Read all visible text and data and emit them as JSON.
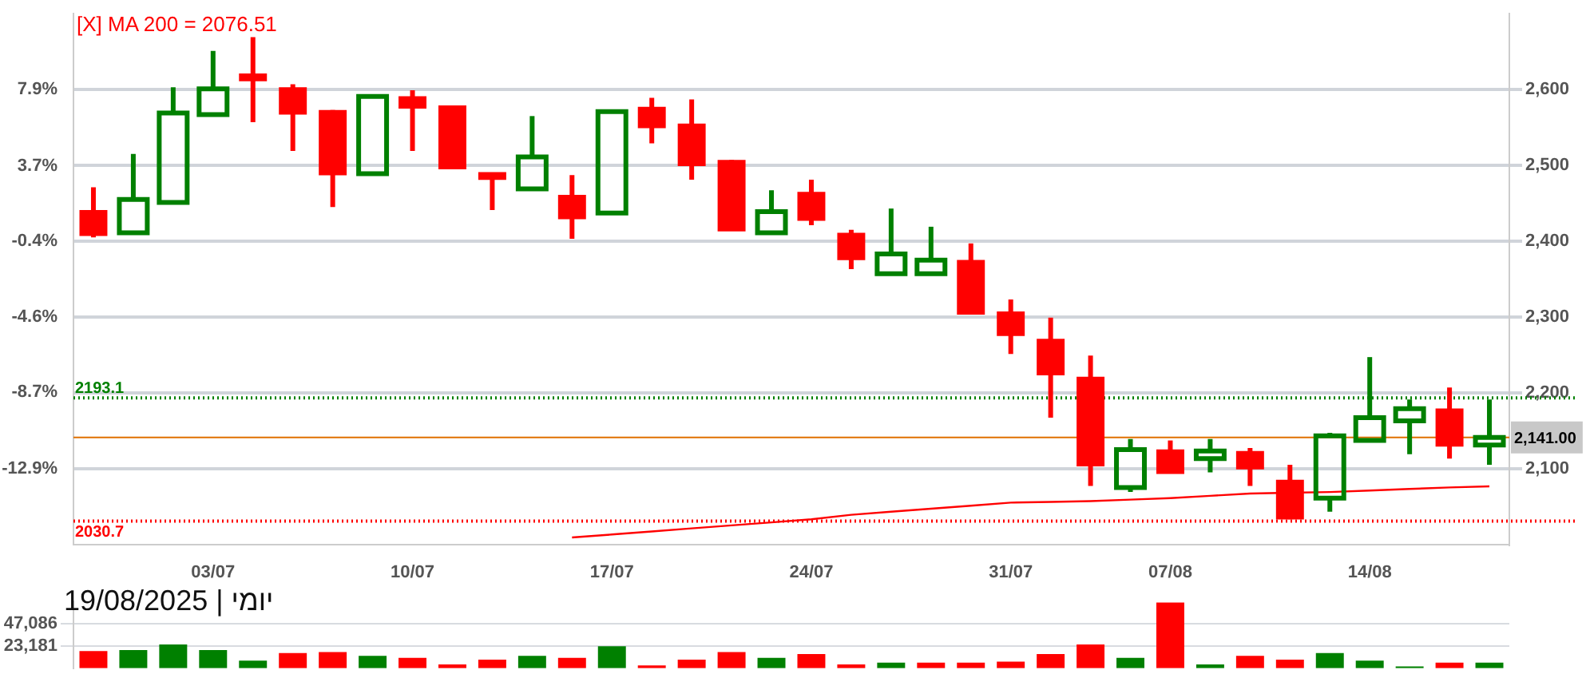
{
  "chart_data": [
    {
      "type": "candlestick",
      "annotations": [
        "[X] MA 200 = 2076.51"
      ],
      "categories": [
        null,
        null,
        null,
        "03/07",
        null,
        null,
        null,
        null,
        "10/07",
        null,
        null,
        null,
        null,
        "17/07",
        null,
        null,
        null,
        null,
        "24/07",
        null,
        null,
        null,
        null,
        "31/07",
        null,
        null,
        null,
        "07/08",
        null,
        null,
        null,
        null,
        "14/08",
        null,
        null,
        null
      ],
      "ohlc": [
        [
          2439,
          2471,
          2405,
          2409
        ],
        [
          2411,
          2515,
          2409,
          2455
        ],
        [
          2451,
          2603,
          2451,
          2569
        ],
        [
          2567,
          2651,
          2565,
          2601
        ],
        [
          2619,
          2669,
          2557,
          2613
        ],
        [
          2601,
          2607,
          2519,
          2569
        ],
        [
          2571,
          2573,
          2445,
          2489
        ],
        [
          2489,
          2591,
          2489,
          2591
        ],
        [
          2589,
          2599,
          2519,
          2577
        ],
        [
          2577,
          2577,
          2497,
          2497
        ],
        [
          2489,
          2489,
          2441,
          2483
        ],
        [
          2469,
          2565,
          2469,
          2511
        ],
        [
          2459,
          2487,
          2403,
          2431
        ],
        [
          2437,
          2571,
          2435,
          2571
        ],
        [
          2575,
          2589,
          2529,
          2551
        ],
        [
          2553,
          2587,
          2481,
          2501
        ],
        [
          2505,
          2507,
          2415,
          2415
        ],
        [
          2411,
          2467,
          2409,
          2439
        ],
        [
          2463,
          2481,
          2421,
          2429
        ],
        [
          2409,
          2415,
          2363,
          2377
        ],
        [
          2357,
          2443,
          2357,
          2383
        ],
        [
          2357,
          2419,
          2357,
          2375
        ],
        [
          2373,
          2397,
          2305,
          2305
        ],
        [
          2305,
          2323,
          2251,
          2277
        ],
        [
          2269,
          2299,
          2167,
          2225
        ],
        [
          2219,
          2249,
          2077,
          2105
        ],
        [
          2075,
          2139,
          2069,
          2125
        ],
        [
          2123,
          2137,
          2095,
          2095
        ],
        [
          2113,
          2139,
          2095,
          2123
        ],
        [
          2121,
          2127,
          2077,
          2101
        ],
        [
          2083,
          2105,
          2033,
          2035
        ],
        [
          2061,
          2147,
          2043,
          2143
        ],
        [
          2137,
          2247,
          2137,
          2167
        ],
        [
          2163,
          2191,
          2119,
          2179
        ],
        [
          2177,
          2207,
          2113,
          2131
        ],
        [
          2131,
          2191,
          2105,
          2141
        ]
      ],
      "colors": [
        "#ff0000",
        "#008000",
        "#008000",
        "#008000",
        "#ff0000",
        "#ff0000",
        "#ff0000",
        "#008000",
        "#ff0000",
        "#ff0000",
        "#ff0000",
        "#008000",
        "#ff0000",
        "#008000",
        "#ff0000",
        "#ff0000",
        "#ff0000",
        "#008000",
        "#ff0000",
        "#ff0000",
        "#008000",
        "#008000",
        "#ff0000",
        "#ff0000",
        "#ff0000",
        "#ff0000",
        "#008000",
        "#ff0000",
        "#008000",
        "#ff0000",
        "#ff0000",
        "#008000",
        "#008000",
        "#008000",
        "#ff0000",
        "#008000"
      ],
      "series": [
        {
          "type": "line",
          "color": "#ff0000",
          "values": [
            null,
            null,
            null,
            null,
            null,
            null,
            null,
            null,
            null,
            null,
            null,
            null,
            2009,
            2013,
            2017,
            2021,
            2025,
            2029,
            2033,
            2039,
            2043,
            2047,
            2051,
            2055,
            2056,
            2057,
            2059,
            2061,
            2064,
            2067,
            2068,
            2069,
            2071,
            2073,
            2075,
            2076.51
          ]
        }
      ],
      "ylim": [
        2000,
        2700
      ],
      "yticks": [
        {
          "value": 2100,
          "label": "2,100"
        },
        {
          "value": 2200,
          "label": "2,200"
        },
        {
          "value": 2300,
          "label": "2,300"
        },
        {
          "value": 2400,
          "label": "2,400"
        },
        {
          "value": 2500,
          "label": "2,500"
        },
        {
          "value": 2600,
          "label": "2,600"
        }
      ],
      "y2lim": [
        -17.06,
        12.06
      ],
      "y2ticks": [
        {
          "value": -12.9,
          "label": "-12.9%"
        },
        {
          "value": -8.7,
          "label": "-8.7%"
        },
        {
          "value": -4.6,
          "label": "-4.6%"
        },
        {
          "value": -0.4,
          "label": "-0.4%"
        },
        {
          "value": 3.7,
          "label": "3.7%"
        },
        {
          "value": 7.9,
          "label": "7.9%"
        }
      ],
      "ref_lines": [
        {
          "axis": "y",
          "value": 2193.1,
          "label": "2193.1",
          "color": "#008000",
          "line_style": "dotted"
        },
        {
          "axis": "y",
          "value": 2141,
          "label": "2,141.00",
          "color": "#e07000",
          "line_style": "solid"
        },
        {
          "axis": "y",
          "value": 2030.7,
          "label": "2030.7",
          "color": "#ff0000",
          "line_style": "dotted"
        }
      ],
      "grid": "y",
      "legend": false
    },
    {
      "type": "bar",
      "title": "יומי | 19/08/2025",
      "categories": [
        null,
        null,
        null,
        null,
        null,
        null,
        null,
        null,
        null,
        null,
        null,
        null,
        null,
        null,
        null,
        null,
        null,
        null,
        null,
        null,
        null,
        null,
        null,
        null,
        null,
        null,
        null,
        null,
        null,
        null,
        null,
        null,
        null,
        null,
        null,
        null
      ],
      "values": [
        18000,
        19000,
        25000,
        19000,
        8000,
        16000,
        17000,
        13000,
        11000,
        4000,
        9000,
        13000,
        11000,
        23000,
        3000,
        9000,
        17000,
        11000,
        15000,
        4000,
        6000,
        6000,
        6000,
        7000,
        15000,
        25000,
        11000,
        69000,
        4000,
        13000,
        9000,
        16000,
        8000,
        2000,
        6000,
        6000
      ],
      "colors": [
        "#ff0000",
        "#008000",
        "#008000",
        "#008000",
        "#008000",
        "#ff0000",
        "#ff0000",
        "#008000",
        "#ff0000",
        "#ff0000",
        "#ff0000",
        "#008000",
        "#ff0000",
        "#008000",
        "#ff0000",
        "#ff0000",
        "#ff0000",
        "#008000",
        "#ff0000",
        "#ff0000",
        "#008000",
        "#ff0000",
        "#ff0000",
        "#ff0000",
        "#ff0000",
        "#ff0000",
        "#008000",
        "#ff0000",
        "#008000",
        "#ff0000",
        "#ff0000",
        "#008000",
        "#008000",
        "#008000",
        "#ff0000",
        "#008000"
      ],
      "ylim": [
        0,
        70000
      ],
      "yticks": [
        {
          "value": 23181,
          "label": "23,181"
        },
        {
          "value": 47086,
          "label": "47,086"
        }
      ],
      "grid": "y",
      "tick_labels": "y",
      "legend": false
    }
  ]
}
